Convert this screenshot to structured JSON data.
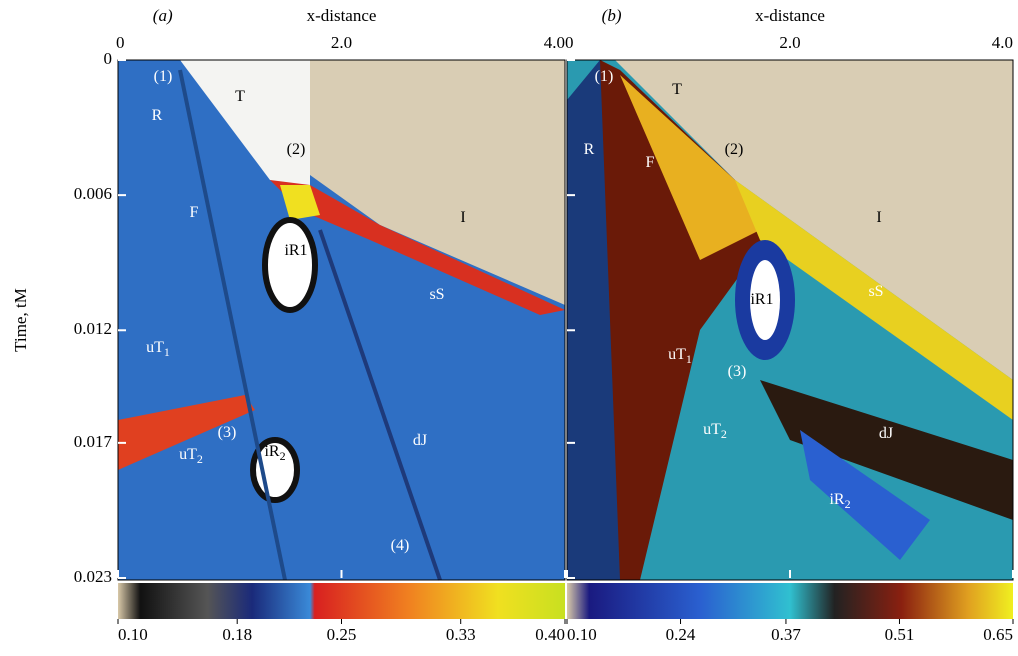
{
  "y_label": "Time, tM",
  "ylim": [
    0,
    0.023
  ],
  "yticks": [
    0,
    0.006,
    0.012,
    0.017,
    0.023
  ],
  "panels": [
    {
      "label": "(a)",
      "x_label": "x-distance",
      "xlim": [
        0,
        4
      ],
      "xticks": [
        0,
        {
          "value": 2,
          "label": "2.0"
        },
        {
          "value": 4,
          "label": "4.0"
        }
      ],
      "colorbar": {
        "lim": [
          0.1,
          0.4
        ],
        "ticks": [
          {
            "value": 0.1,
            "label": "0.10"
          },
          0.18,
          0.25,
          0.33,
          {
            "value": 0.4,
            "label": "0.40"
          }
        ]
      },
      "annotations": [
        {
          "text": "(1)"
        },
        {
          "text": "T"
        },
        {
          "text": "R"
        },
        {
          "text": "(2)"
        },
        {
          "text": "F"
        },
        {
          "text": "iR1"
        },
        {
          "text": "I"
        },
        {
          "text": "sS"
        },
        {
          "text": "uT",
          "sub": "1"
        },
        {
          "text": "(3)"
        },
        {
          "text": "uT",
          "sub": "2"
        },
        {
          "text": "iR",
          "sub": "2"
        },
        {
          "text": "dJ"
        },
        {
          "text": "(4)"
        }
      ]
    },
    {
      "label": "(b)",
      "x_label": "x-distance",
      "xlim": [
        0,
        4
      ],
      "xticks": [
        0,
        {
          "value": 2,
          "label": "2.0"
        },
        {
          "value": 4,
          "label": "4.0"
        }
      ],
      "colorbar": {
        "lim": [
          0.1,
          0.65
        ],
        "ticks": [
          {
            "value": 0.1,
            "label": "0.10"
          },
          0.24,
          0.37,
          0.51,
          0.65
        ]
      },
      "annotations": [
        {
          "text": "(1)"
        },
        {
          "text": "T"
        },
        {
          "text": "R"
        },
        {
          "text": "F"
        },
        {
          "text": "(2)"
        },
        {
          "text": "I"
        },
        {
          "text": "iR1"
        },
        {
          "text": "sS"
        },
        {
          "text": "uT",
          "sub": "1"
        },
        {
          "text": "(3)"
        },
        {
          "text": "uT",
          "sub": "2"
        },
        {
          "text": "dJ"
        },
        {
          "text": "iR",
          "sub": "2"
        }
      ]
    }
  ]
}
